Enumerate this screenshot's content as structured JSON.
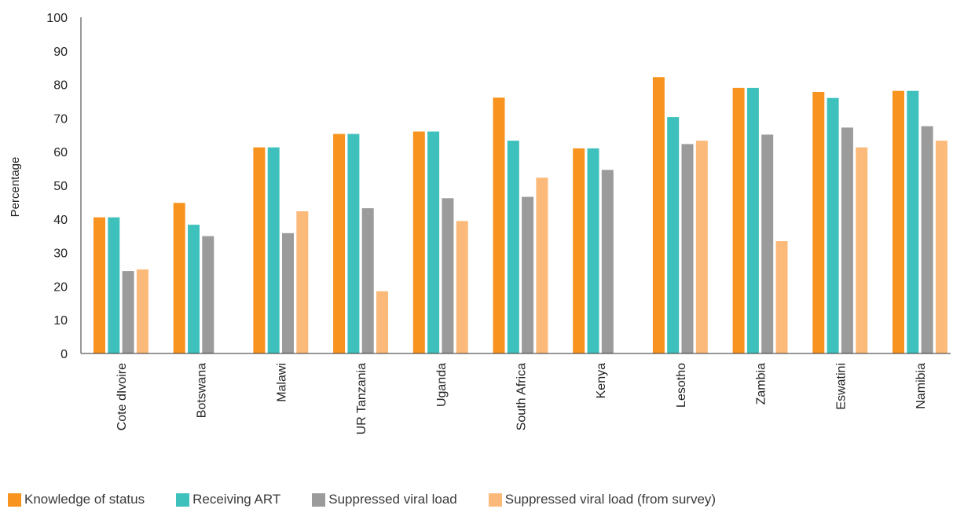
{
  "chart_data": {
    "type": "bar",
    "title": "",
    "xlabel": "",
    "ylabel": "Percentage",
    "ylim": [
      0,
      100
    ],
    "yticks": [
      0,
      10,
      20,
      30,
      40,
      50,
      60,
      70,
      80,
      90,
      100
    ],
    "grid": false,
    "legend_position": "bottom-left",
    "categories": [
      "Cote dIvoire",
      "Botswana",
      "Malawi",
      "UR Tanzania",
      "Uganda",
      "South Africa",
      "Kenya",
      "Lesotho",
      "Zambia",
      "Eswatini",
      "Namibia"
    ],
    "series": [
      {
        "name": "Knowledge of status",
        "color": "#F7931E",
        "values": [
          40.5,
          44.8,
          61.3,
          65.3,
          66.0,
          76.1,
          61.0,
          82.2,
          79.0,
          77.8,
          78.1
        ]
      },
      {
        "name": "Receiving ART",
        "color": "#3EC1BC",
        "values": [
          40.5,
          38.3,
          61.3,
          65.3,
          66.0,
          63.3,
          61.0,
          70.3,
          79.0,
          76.0,
          78.1
        ]
      },
      {
        "name": "Suppressed viral load",
        "color": "#9B9B9B",
        "values": [
          24.5,
          34.9,
          35.8,
          43.2,
          46.2,
          46.6,
          54.6,
          62.3,
          65.1,
          67.2,
          67.6
        ]
      },
      {
        "name": "Suppressed viral load (from survey)",
        "color": "#FBB97A",
        "values": [
          25.0,
          null,
          42.3,
          18.5,
          39.4,
          52.3,
          null,
          63.3,
          33.4,
          61.3,
          63.3
        ]
      }
    ]
  }
}
